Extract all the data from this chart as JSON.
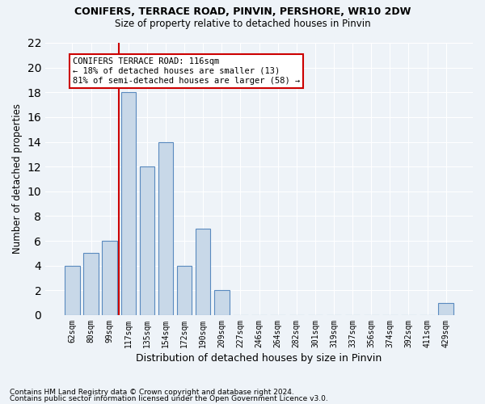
{
  "title1": "CONIFERS, TERRACE ROAD, PINVIN, PERSHORE, WR10 2DW",
  "title2": "Size of property relative to detached houses in Pinvin",
  "xlabel": "Distribution of detached houses by size in Pinvin",
  "ylabel": "Number of detached properties",
  "categories": [
    "62sqm",
    "80sqm",
    "99sqm",
    "117sqm",
    "135sqm",
    "154sqm",
    "172sqm",
    "190sqm",
    "209sqm",
    "227sqm",
    "246sqm",
    "264sqm",
    "282sqm",
    "301sqm",
    "319sqm",
    "337sqm",
    "356sqm",
    "374sqm",
    "392sqm",
    "411sqm",
    "429sqm"
  ],
  "values": [
    4,
    5,
    6,
    18,
    12,
    14,
    4,
    7,
    2,
    0,
    0,
    0,
    0,
    0,
    0,
    0,
    0,
    0,
    0,
    0,
    1
  ],
  "bar_color": "#c8d8e8",
  "bar_edge_color": "#5a8abf",
  "vline_x_index": 3,
  "vline_color": "#cc0000",
  "annotation_text": "CONIFERS TERRACE ROAD: 116sqm\n← 18% of detached houses are smaller (13)\n81% of semi-detached houses are larger (58) →",
  "annotation_box_color": "#ffffff",
  "annotation_box_edge_color": "#cc0000",
  "ylim": [
    0,
    22
  ],
  "yticks": [
    0,
    2,
    4,
    6,
    8,
    10,
    12,
    14,
    16,
    18,
    20,
    22
  ],
  "footnote1": "Contains HM Land Registry data © Crown copyright and database right 2024.",
  "footnote2": "Contains public sector information licensed under the Open Government Licence v3.0.",
  "bg_color": "#eef3f8",
  "plot_bg_color": "#eef3f8",
  "grid_color": "#ffffff"
}
